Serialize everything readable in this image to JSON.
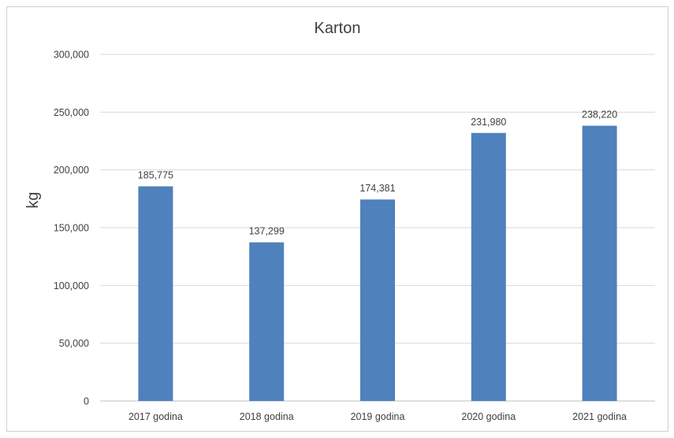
{
  "chart_data": {
    "type": "bar",
    "title": "Karton",
    "ylabel": "kg",
    "xlabel": "",
    "categories": [
      "2017 godina",
      "2018 godina",
      "2019 godina",
      "2020 godina",
      "2021 godina"
    ],
    "values": [
      185775,
      137299,
      174381,
      231980,
      238220
    ],
    "value_labels": [
      "185,775",
      "137,299",
      "174,381",
      "231,980",
      "238,220"
    ],
    "ylim": [
      0,
      300000
    ],
    "yticks": [
      0,
      50000,
      100000,
      150000,
      200000,
      250000,
      300000
    ],
    "ytick_labels": [
      "0",
      "50,000",
      "100,000",
      "150,000",
      "200,000",
      "250,000",
      "300,000"
    ],
    "grid": true,
    "legend": "none",
    "bar_color": "#4f81bd",
    "grid_color": "#d9d9d9"
  }
}
